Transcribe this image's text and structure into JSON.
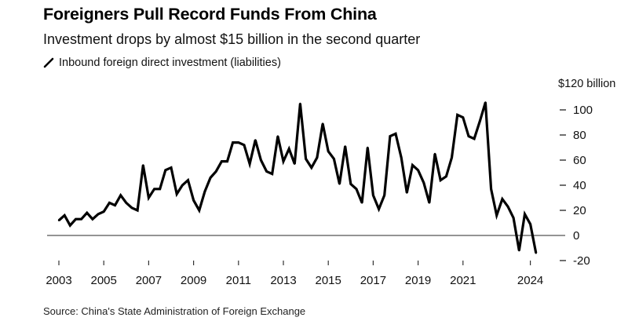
{
  "header": {
    "title": "Foreigners Pull Record Funds From China",
    "subtitle": "Investment drops by almost $15 billion in the second quarter",
    "legend_label": "Inbound foreign direct investment (liabilities)"
  },
  "footer": {
    "source": "Source: China's State Administration of Foreign Exchange"
  },
  "colors": {
    "line": "#000000",
    "zero_line": "#555555",
    "text": "#111111"
  },
  "chart_data": {
    "type": "line",
    "title": "Foreigners Pull Record Funds From China",
    "subtitle": "Investment drops by almost $15 billion in the second quarter",
    "xlabel": "",
    "ylabel": "$120 billion",
    "unit_label": "$120 billion",
    "frequency": "quarterly",
    "x_start": "2003 Q1",
    "x_end": "2024 Q2",
    "xlim": [
      2003,
      2024.5
    ],
    "ylim": [
      -20,
      120
    ],
    "x_ticks": [
      2003,
      2005,
      2007,
      2009,
      2011,
      2013,
      2015,
      2017,
      2019,
      2021,
      2024
    ],
    "x_tick_labels": [
      "2003",
      "2005",
      "2007",
      "2009",
      "2011",
      "2013",
      "2015",
      "2017",
      "2019",
      "2021",
      "2024"
    ],
    "y_ticks": [
      100,
      80,
      60,
      40,
      20,
      0,
      -20
    ],
    "y_tick_labels": [
      "100",
      "80",
      "60",
      "40",
      "20",
      "0",
      "-20"
    ],
    "grid": false,
    "legend": "top-left",
    "series": [
      {
        "name": "Inbound foreign direct investment (liabilities)",
        "values": [
          12,
          16,
          8,
          13,
          13,
          18,
          13,
          17,
          19,
          26,
          24,
          32,
          26,
          22,
          20,
          56,
          30,
          37,
          37,
          52,
          54,
          33,
          40,
          44,
          28,
          20,
          35,
          46,
          51,
          59,
          59,
          74,
          74,
          72,
          57,
          76,
          60,
          51,
          49,
          79,
          59,
          69,
          57,
          105,
          61,
          54,
          62,
          89,
          67,
          61,
          41,
          71,
          41,
          37,
          26,
          70,
          32,
          21,
          32,
          79,
          81,
          62,
          34,
          56,
          52,
          42,
          26,
          65,
          44,
          47,
          62,
          96,
          94,
          79,
          77,
          91,
          106,
          37,
          16,
          29,
          23,
          14,
          -12,
          17,
          9,
          -14
        ]
      }
    ]
  }
}
